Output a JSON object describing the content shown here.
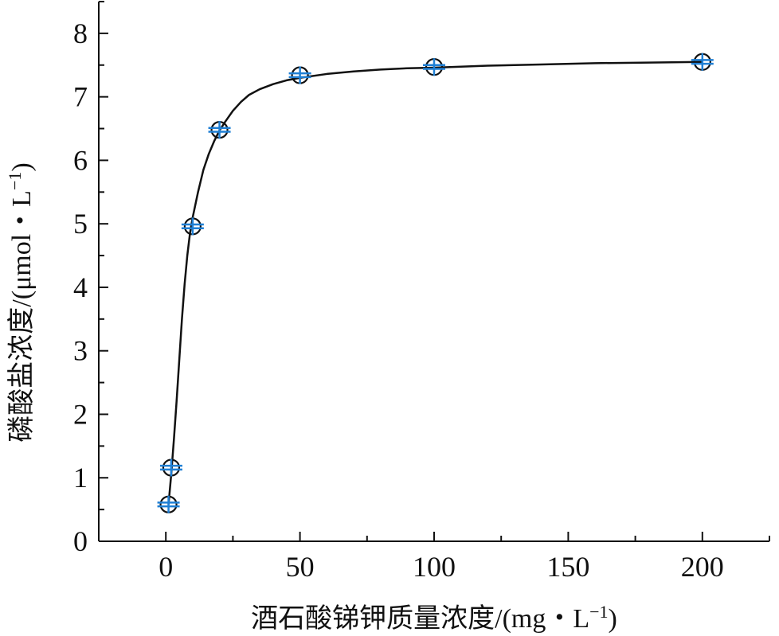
{
  "chart_data": {
    "type": "scatter",
    "xlabel": "酒石酸锑钾质量浓度/(mg・L",
    "xlabel_sup": "−1",
    "xlabel_end": ")",
    "ylabel": "磷酸盐浓度/(μmol・L",
    "ylabel_sup": "−1",
    "ylabel_end": ")",
    "xlim": [
      -25,
      225
    ],
    "ylim": [
      0,
      8.5
    ],
    "x_ticks": [
      0,
      50,
      100,
      150,
      200
    ],
    "y_ticks": [
      0,
      1,
      2,
      3,
      4,
      5,
      6,
      7,
      8
    ],
    "x_tick_labels": [
      "0",
      "50",
      "100",
      "150",
      "200"
    ],
    "y_tick_labels": [
      "0",
      "1",
      "2",
      "3",
      "4",
      "5",
      "6",
      "7",
      "8"
    ],
    "grid": false,
    "series": [
      {
        "x": [
          1,
          2,
          10,
          20,
          50,
          100,
          200
        ],
        "y": [
          0.58,
          1.16,
          4.96,
          6.48,
          7.34,
          7.47,
          7.55
        ],
        "error": [
          0.03,
          0.03,
          0.03,
          0.03,
          0.03,
          0.03,
          0.03
        ],
        "marker": "open-circle",
        "marker_color": "#111111",
        "error_color": "#1f7fd4"
      }
    ],
    "fit_curve": {
      "color": "#111111",
      "x": [
        1,
        2,
        3,
        4,
        5,
        6,
        7,
        8,
        9,
        10,
        12,
        14,
        16,
        18,
        20,
        22,
        25,
        28,
        31,
        35,
        40,
        45,
        50,
        60,
        70,
        80,
        90,
        100,
        120,
        140,
        160,
        180,
        200
      ],
      "y": [
        0.58,
        1.05,
        1.6,
        2.2,
        2.85,
        3.5,
        4.05,
        4.5,
        4.85,
        5.1,
        5.5,
        5.85,
        6.1,
        6.3,
        6.47,
        6.6,
        6.78,
        6.92,
        7.03,
        7.12,
        7.2,
        7.26,
        7.3,
        7.36,
        7.4,
        7.43,
        7.45,
        7.46,
        7.49,
        7.51,
        7.53,
        7.54,
        7.55
      ]
    }
  }
}
